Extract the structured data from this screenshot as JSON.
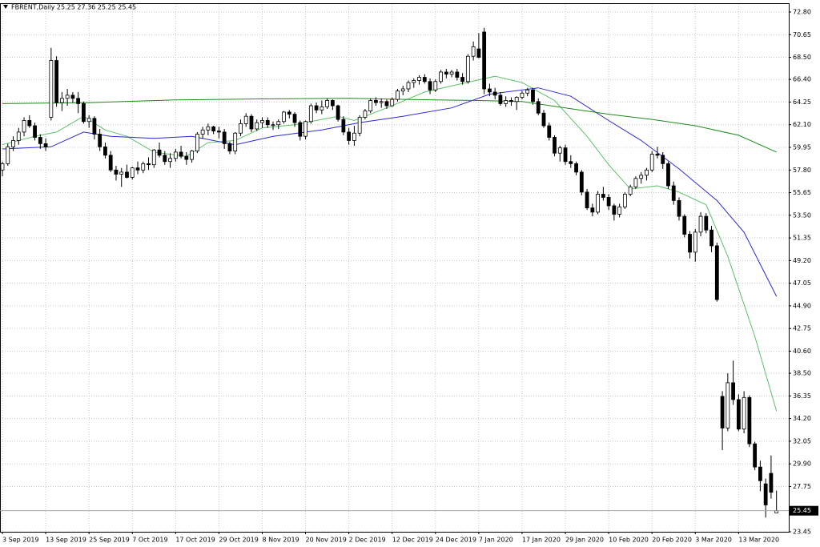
{
  "chart_data": {
    "type": "candlestick",
    "title": "FBRENT,Daily  25.25 27.36 25.25 25.45",
    "categories": [
      "3 Sep 2019",
      null,
      null,
      null,
      null,
      null,
      null,
      null,
      "13 Sep 2019",
      null,
      null,
      null,
      null,
      null,
      null,
      null,
      "25 Sep 2019",
      null,
      null,
      null,
      null,
      null,
      null,
      null,
      "7 Oct 2019",
      null,
      null,
      null,
      null,
      null,
      null,
      null,
      "17 Oct 2019",
      null,
      null,
      null,
      null,
      null,
      null,
      null,
      "29 Oct 2019",
      null,
      null,
      null,
      null,
      null,
      null,
      null,
      "8 Nov 2019",
      null,
      null,
      null,
      null,
      null,
      null,
      null,
      "20 Nov 2019",
      null,
      null,
      null,
      null,
      null,
      null,
      null,
      "2 Dec 2019",
      null,
      null,
      null,
      null,
      null,
      null,
      null,
      "12 Dec 2019",
      null,
      null,
      null,
      null,
      null,
      null,
      null,
      "24 Dec 2019",
      null,
      null,
      null,
      null,
      null,
      null,
      null,
      "7 Jan 2020",
      null,
      null,
      null,
      null,
      null,
      null,
      null,
      "17 Jan 2020",
      null,
      null,
      null,
      null,
      null,
      null,
      null,
      "29 Jan 2020",
      null,
      null,
      null,
      null,
      null,
      null,
      null,
      "10 Feb 2020",
      null,
      null,
      null,
      null,
      null,
      null,
      null,
      "20 Feb 2020",
      null,
      null,
      null,
      null,
      null,
      null,
      null,
      "3 Mar 2020",
      null,
      null,
      null,
      null,
      null,
      null,
      null,
      "13 Mar 2020",
      null,
      null,
      null,
      null,
      null,
      null,
      null
    ],
    "open": [
      57.8,
      58.4,
      60.0,
      60.6,
      61.4,
      62.5,
      62.0,
      60.9,
      60.3,
      62.8,
      68.2,
      64.2,
      64.6,
      64.9,
      64.6,
      64.1,
      62.4,
      62.7,
      61.2,
      60.0,
      59.2,
      57.8,
      57.4,
      57.6,
      57.1,
      58.0,
      57.8,
      58.4,
      58.3,
      59.7,
      59.2,
      58.6,
      58.9,
      59.5,
      59.1,
      58.8,
      59.6,
      61.2,
      61.6,
      61.9,
      61.5,
      61.4,
      60.3,
      59.6,
      61.3,
      62.2,
      62.9,
      61.7,
      62.3,
      62.5,
      62.1,
      62.1,
      62.4,
      63.3,
      63.1,
      62.3,
      61.0,
      62.4,
      63.9,
      63.5,
      63.8,
      64.4,
      63.9,
      62.6,
      61.4,
      60.6,
      61.3,
      62.8,
      63.4,
      64.4,
      64.2,
      64.3,
      63.9,
      64.5,
      65.3,
      65.5,
      66.1,
      66.3,
      66.6,
      66.2,
      65.4,
      66.2,
      67.1,
      66.9,
      67.1,
      66.6,
      66.2,
      68.6,
      69.3,
      70.9,
      65.5,
      65.2,
      64.9,
      64.1,
      64.4,
      64.3,
      64.7,
      65.1,
      65.4,
      64.3,
      63.2,
      62.0,
      60.9,
      59.4,
      59.9,
      58.6,
      58.4,
      57.6,
      55.7,
      54.2,
      53.8,
      55.5,
      55.2,
      54.4,
      53.6,
      54.3,
      55.5,
      56.2,
      57.0,
      57.3,
      57.8,
      59.3,
      59.2,
      58.4,
      56.3,
      54.9,
      53.4,
      51.7,
      50.0,
      51.9,
      53.4,
      52.1,
      50.6,
      36.3,
      33.3,
      37.6,
      36.0,
      33.2,
      36.2,
      31.8,
      29.6,
      28.0,
      29.0,
      25.25
    ],
    "high": [
      58.6,
      60.3,
      61.0,
      61.8,
      62.8,
      63.0,
      62.3,
      61.2,
      60.8,
      69.4,
      68.6,
      65.2,
      65.5,
      65.2,
      65.2,
      64.3,
      63.0,
      62.9,
      61.7,
      60.4,
      59.6,
      58.2,
      58.0,
      58.3,
      58.1,
      58.6,
      58.6,
      59.0,
      59.8,
      60.4,
      59.6,
      59.4,
      59.8,
      60.1,
      59.5,
      59.7,
      61.4,
      61.9,
      62.2,
      62.0,
      61.9,
      61.7,
      60.5,
      61.4,
      62.6,
      63.2,
      63.1,
      62.6,
      62.8,
      62.8,
      62.4,
      62.6,
      63.4,
      63.5,
      63.3,
      62.5,
      62.5,
      64.1,
      64.2,
      64.4,
      64.6,
      64.5,
      64.0,
      62.9,
      61.8,
      62.0,
      63.0,
      63.6,
      64.6,
      64.7,
      64.6,
      64.5,
      64.7,
      65.5,
      65.8,
      66.3,
      66.5,
      66.8,
      66.9,
      66.5,
      66.4,
      67.3,
      67.4,
      67.3,
      67.4,
      67.0,
      68.8,
      70.0,
      70.8,
      71.3,
      66.0,
      65.6,
      65.2,
      64.8,
      64.7,
      64.8,
      65.3,
      65.6,
      65.6,
      64.6,
      63.5,
      62.3,
      61.1,
      60.1,
      60.2,
      59.2,
      58.6,
      57.8,
      56.0,
      54.6,
      55.8,
      56.2,
      55.5,
      54.6,
      54.6,
      55.7,
      56.4,
      57.2,
      57.6,
      58.0,
      59.6,
      60.0,
      59.5,
      58.6,
      56.7,
      55.2,
      53.6,
      52.0,
      52.2,
      53.8,
      53.7,
      52.5,
      50.9,
      36.8,
      38.5,
      39.7,
      36.5,
      36.8,
      36.4,
      32.0,
      30.2,
      28.5,
      30.7,
      27.36
    ],
    "low": [
      57.2,
      58.2,
      59.6,
      60.2,
      61.0,
      61.8,
      60.6,
      59.8,
      59.6,
      62.5,
      63.8,
      63.4,
      63.9,
      64.2,
      63.2,
      62.2,
      61.8,
      60.7,
      59.6,
      58.9,
      57.6,
      56.8,
      56.2,
      57.0,
      56.9,
      57.4,
      57.5,
      57.8,
      58.0,
      59.0,
      58.3,
      58.0,
      58.6,
      58.9,
      58.3,
      58.5,
      59.4,
      60.8,
      61.1,
      61.2,
      60.8,
      59.8,
      59.3,
      59.3,
      61.0,
      61.9,
      61.4,
      61.5,
      61.8,
      61.8,
      61.6,
      61.7,
      62.2,
      62.7,
      61.9,
      60.6,
      60.7,
      62.2,
      63.2,
      63.1,
      63.6,
      63.5,
      62.4,
      61.1,
      60.2,
      60.1,
      61.0,
      62.6,
      63.2,
      63.9,
      63.7,
      63.6,
      63.8,
      64.3,
      64.9,
      65.2,
      65.6,
      65.9,
      66.0,
      65.0,
      65.2,
      66.0,
      66.5,
      66.6,
      66.3,
      65.9,
      66.0,
      68.2,
      68.4,
      65.0,
      64.8,
      64.5,
      63.9,
      63.8,
      63.9,
      63.5,
      64.5,
      64.8,
      64.0,
      63.0,
      61.8,
      60.6,
      59.1,
      58.6,
      58.3,
      58.0,
      57.3,
      55.4,
      54.0,
      53.4,
      53.6,
      54.9,
      54.0,
      53.0,
      53.3,
      54.1,
      55.3,
      56.0,
      56.5,
      56.8,
      57.6,
      58.9,
      57.9,
      56.0,
      54.5,
      53.0,
      51.4,
      49.4,
      49.1,
      51.5,
      51.8,
      50.0,
      45.3,
      31.2,
      33.0,
      35.5,
      33.0,
      32.8,
      31.5,
      29.3,
      27.3,
      24.8,
      26.6,
      25.25
    ],
    "close": [
      58.4,
      60.0,
      60.6,
      61.4,
      62.5,
      62.0,
      60.9,
      60.3,
      60.0,
      68.2,
      64.2,
      64.6,
      64.9,
      64.6,
      64.1,
      62.4,
      62.7,
      61.2,
      60.0,
      59.2,
      57.8,
      57.4,
      57.6,
      57.1,
      58.0,
      57.8,
      58.4,
      58.3,
      59.7,
      59.2,
      58.6,
      58.9,
      59.5,
      59.1,
      58.8,
      59.6,
      61.2,
      61.6,
      61.9,
      61.5,
      61.4,
      60.3,
      59.6,
      61.3,
      62.2,
      62.9,
      61.7,
      62.3,
      62.5,
      62.1,
      62.1,
      62.4,
      63.3,
      63.1,
      62.3,
      61.0,
      62.4,
      63.9,
      63.5,
      63.8,
      64.4,
      63.9,
      62.6,
      61.4,
      60.6,
      61.3,
      62.8,
      63.4,
      64.4,
      64.2,
      64.3,
      63.9,
      64.5,
      65.3,
      65.5,
      66.1,
      66.3,
      66.6,
      66.2,
      65.4,
      66.2,
      67.1,
      66.9,
      67.1,
      66.6,
      66.2,
      68.6,
      69.5,
      68.5,
      65.5,
      65.2,
      64.9,
      64.1,
      64.4,
      64.3,
      64.7,
      65.1,
      65.4,
      64.3,
      63.2,
      62.0,
      60.9,
      59.4,
      59.9,
      58.6,
      58.4,
      57.6,
      55.7,
      54.2,
      53.8,
      55.5,
      55.2,
      54.4,
      53.6,
      54.3,
      55.5,
      56.2,
      57.0,
      57.3,
      57.8,
      59.3,
      59.2,
      58.4,
      56.3,
      54.9,
      53.4,
      51.7,
      50.0,
      51.9,
      53.4,
      52.1,
      50.6,
      45.5,
      33.3,
      37.6,
      36.0,
      33.2,
      36.2,
      31.8,
      29.6,
      28.3,
      26.0,
      27.2,
      25.45
    ],
    "series": [
      {
        "color": "#5fbf6a",
        "x": [
          0,
          6,
          10,
          15,
          19,
          23,
          28,
          34,
          38,
          43,
          48,
          54,
          62,
          65,
          71,
          78,
          84,
          91,
          96,
          102,
          108,
          112,
          116,
          121,
          125,
          130,
          134,
          139,
          143
        ],
        "values": [
          60.2,
          61.0,
          61.4,
          62.9,
          61.6,
          61.0,
          59.5,
          59.1,
          60.4,
          60.6,
          61.8,
          62.1,
          62.9,
          62.5,
          63.7,
          65.2,
          65.9,
          66.7,
          66.1,
          64.4,
          61.0,
          58.3,
          56.0,
          56.3,
          55.7,
          54.5,
          49.6,
          42.0,
          34.9
        ]
      },
      {
        "color": "#2a2ad0",
        "x": [
          0,
          9,
          15,
          20,
          28,
          35,
          43,
          50,
          59,
          66,
          74,
          83,
          90,
          99,
          105,
          112,
          118,
          125,
          132,
          137,
          143
        ],
        "values": [
          59.8,
          60.0,
          61.4,
          61.0,
          60.8,
          61.0,
          60.2,
          61.0,
          61.6,
          62.3,
          62.9,
          63.7,
          65.0,
          65.6,
          64.8,
          62.5,
          60.6,
          57.9,
          54.9,
          51.9,
          45.8
        ]
      },
      {
        "color": "#1f8a1f",
        "x": [
          0,
          16,
          32,
          48,
          64,
          80,
          88,
          96,
          104,
          112,
          120,
          128,
          136,
          143
        ],
        "values": [
          64.1,
          64.2,
          64.45,
          64.55,
          64.6,
          64.45,
          64.4,
          64.3,
          63.7,
          63.1,
          62.6,
          62.0,
          61.1,
          59.5
        ]
      }
    ],
    "ylim": [
      23.45,
      73.56
    ],
    "yticks": [
      {
        "value": 72.8,
        "label": "72.80"
      },
      70.65,
      {
        "value": 68.5,
        "label": "68.50"
      },
      {
        "value": 66.4,
        "label": "66.40"
      },
      64.25,
      {
        "value": 62.1,
        "label": "62.10"
      },
      59.95,
      {
        "value": 57.8,
        "label": "57.80"
      },
      55.65,
      {
        "value": 53.5,
        "label": "53.50"
      },
      51.35,
      {
        "value": 49.2,
        "label": "49.20"
      },
      47.05,
      {
        "value": 44.9,
        "label": "44.90"
      },
      42.75,
      {
        "value": 40.6,
        "label": "40.60"
      },
      {
        "value": 38.5,
        "label": "38.50"
      },
      36.35,
      {
        "value": 34.2,
        "label": "34.20"
      },
      32.05,
      {
        "value": 29.9,
        "label": "29.90"
      },
      27.75,
      23.45
    ],
    "grid": true
  }
}
